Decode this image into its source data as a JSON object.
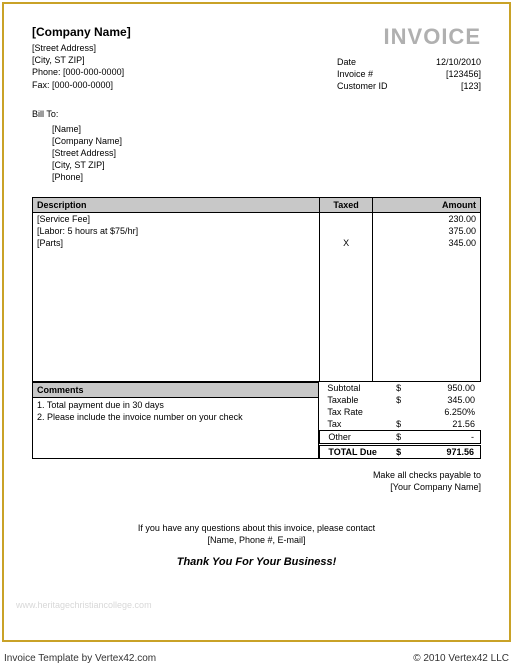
{
  "company": {
    "name": "[Company Name]",
    "address": "[Street Address]",
    "city_st_zip": "[City, ST  ZIP]",
    "phone": "Phone: [000-000-0000]",
    "fax": "Fax: [000-000-0000]"
  },
  "invoice_title": "INVOICE",
  "meta": {
    "date_label": "Date",
    "date_value": "12/10/2010",
    "invoice_num_label": "Invoice #",
    "invoice_num_value": "[123456]",
    "customer_id_label": "Customer ID",
    "customer_id_value": "[123]"
  },
  "bill_to": {
    "title": "Bill To:",
    "name": "[Name]",
    "company": "[Company Name]",
    "address": "[Street Address]",
    "city_st_zip": "[City, ST  ZIP]",
    "phone": "[Phone]"
  },
  "items_table": {
    "columns": [
      "Description",
      "Taxed",
      "Amount"
    ],
    "rows": [
      {
        "desc": "[Service Fee]",
        "taxed": "",
        "amount": "230.00"
      },
      {
        "desc": "[Labor: 5 hours at $75/hr]",
        "taxed": "",
        "amount": "375.00"
      },
      {
        "desc": "[Parts]",
        "taxed": "X",
        "amount": "345.00"
      }
    ],
    "filler_rows": 11,
    "header_bg": "#c8c8c8",
    "border_color": "#000000"
  },
  "comments": {
    "header": "Comments",
    "lines": [
      "1. Total payment due in 30 days",
      "2. Please include the invoice number on your check"
    ]
  },
  "totals": {
    "subtotal_label": "Subtotal",
    "subtotal_value": "950.00",
    "taxable_label": "Taxable",
    "taxable_value": "345.00",
    "taxrate_label": "Tax Rate",
    "taxrate_value": "6.250%",
    "tax_label": "Tax",
    "tax_value": "21.56",
    "other_label": "Other",
    "other_value": "-",
    "total_label": "TOTAL Due",
    "total_value": "971.56",
    "currency": "$"
  },
  "payable": {
    "line1": "Make all checks payable to",
    "line2": "[Your Company Name]"
  },
  "questions": {
    "line1": "If you have any questions about this invoice, please contact",
    "line2": "[Name, Phone #, E-mail]"
  },
  "thanks": "Thank You For Your Business!",
  "watermark": "www.heritagechristiancollege.com",
  "footer": {
    "left": "Invoice Template by Vertex42.com",
    "right": "© 2010 Vertex42 LLC"
  }
}
